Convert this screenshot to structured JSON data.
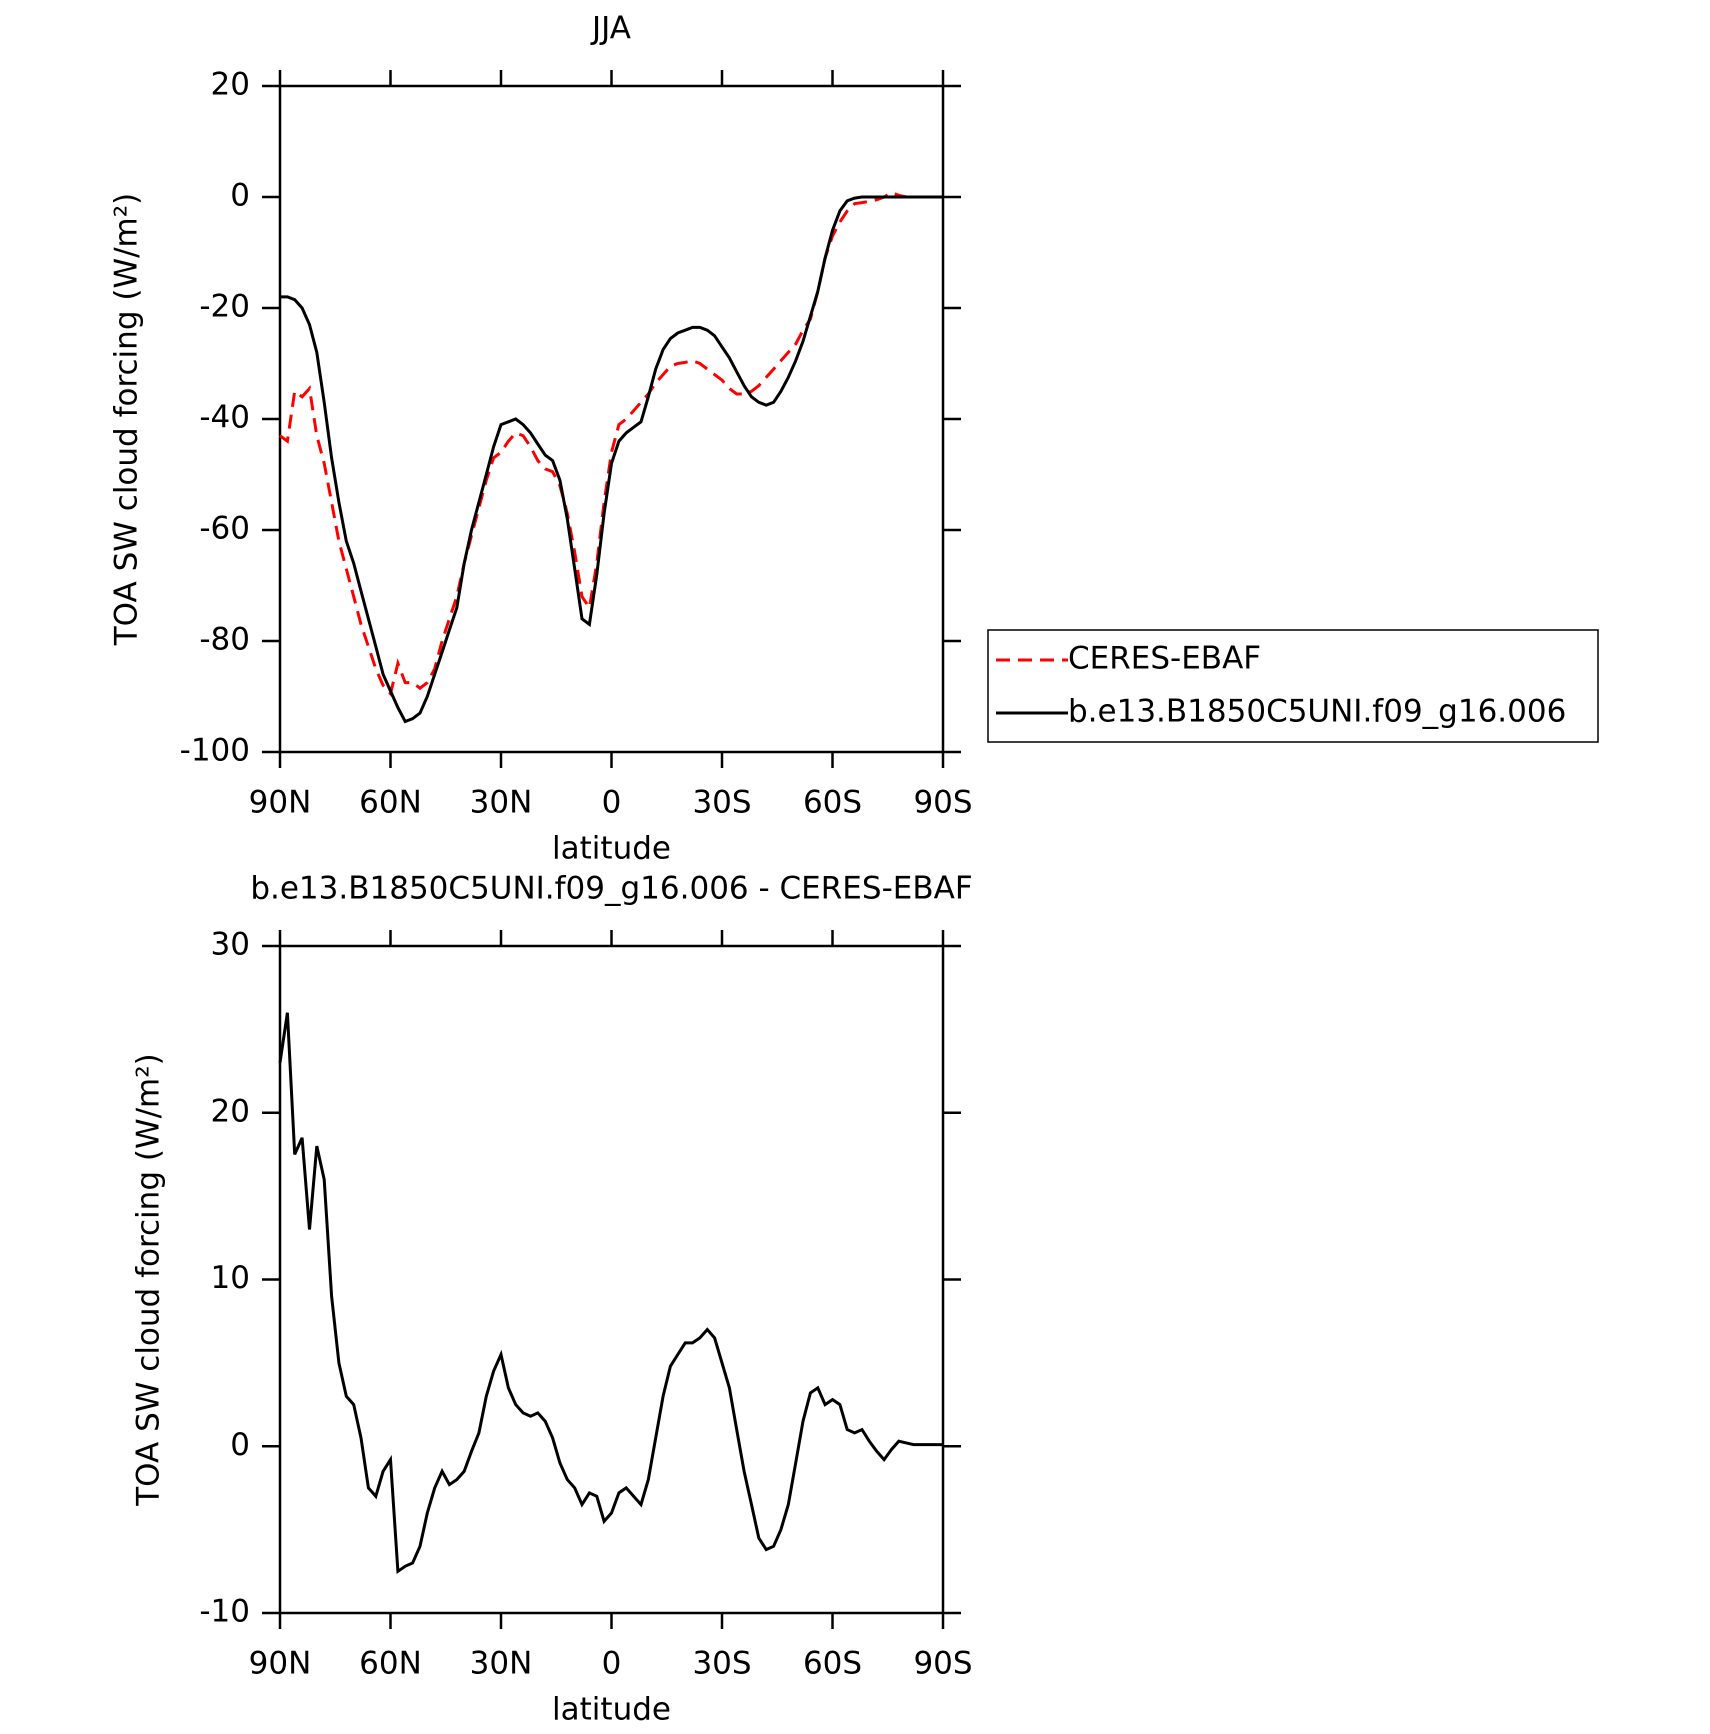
{
  "chart_data": [
    {
      "type": "line",
      "title": "JJA",
      "xlabel": "latitude",
      "ylabel": "TOA SW cloud forcing (W/m²)",
      "x": [
        90,
        88,
        86,
        84,
        82,
        80,
        78,
        76,
        74,
        72,
        70,
        68,
        66,
        64,
        62,
        60,
        58,
        56,
        54,
        52,
        50,
        48,
        46,
        44,
        42,
        40,
        38,
        36,
        34,
        32,
        30,
        28,
        26,
        24,
        22,
        20,
        18,
        16,
        14,
        12,
        10,
        8,
        6,
        4,
        2,
        0,
        -2,
        -4,
        -6,
        -8,
        -10,
        -12,
        -14,
        -16,
        -18,
        -20,
        -22,
        -24,
        -26,
        -28,
        -30,
        -32,
        -34,
        -36,
        -38,
        -40,
        -42,
        -44,
        -46,
        -48,
        -50,
        -52,
        -54,
        -56,
        -58,
        -60,
        -62,
        -64,
        -66,
        -68,
        -70,
        -72,
        -74,
        -76,
        -78,
        -80,
        -82,
        -84,
        -86,
        -88,
        -90
      ],
      "series": [
        {
          "name": "CERES-EBAF",
          "color": "#ff0000",
          "dashed": true,
          "values": [
            -43,
            -44,
            -35,
            -36,
            -34.5,
            -43,
            -48,
            -55,
            -62,
            -67,
            -72,
            -77,
            -81,
            -85,
            -88,
            -89.5,
            -84,
            -87.5,
            -87.5,
            -88.5,
            -87.5,
            -85,
            -80,
            -76,
            -72,
            -66,
            -61,
            -56,
            -51,
            -47,
            -46,
            -44,
            -42.5,
            -43,
            -45,
            -47.5,
            -49,
            -49.5,
            -52,
            -57,
            -64,
            -72,
            -74,
            -66,
            -55,
            -46,
            -41,
            -40,
            -38.5,
            -37,
            -35.5,
            -33.5,
            -32,
            -30.5,
            -30,
            -29.8,
            -29.5,
            -30,
            -31,
            -32,
            -33,
            -34.5,
            -35.5,
            -35.5,
            -35,
            -34,
            -32.5,
            -31,
            -29.5,
            -28,
            -26.5,
            -24,
            -22,
            -17,
            -11,
            -7,
            -4.5,
            -2.5,
            -1.2,
            -1,
            -0.8,
            -0.5,
            0,
            0.8,
            0.3,
            0,
            0,
            0,
            0,
            0,
            0
          ]
        },
        {
          "name": "b.e13.B1850C5UNI.f09_g16.006",
          "color": "#000000",
          "dashed": false,
          "values": [
            -18,
            -18,
            -18.5,
            -20,
            -23,
            -28,
            -37,
            -47,
            -55,
            -62,
            -66,
            -71,
            -76,
            -81,
            -86,
            -89,
            -92,
            -94.5,
            -94,
            -93,
            -90,
            -86,
            -82,
            -78,
            -74,
            -66,
            -60,
            -55,
            -50,
            -45,
            -41,
            -40.5,
            -40,
            -41,
            -42.5,
            -44.5,
            -46.5,
            -47.5,
            -51,
            -58,
            -67,
            -76,
            -77,
            -68,
            -57,
            -48,
            -44,
            -42.5,
            -41.5,
            -40.5,
            -36,
            -31,
            -27.5,
            -25.5,
            -24.5,
            -24,
            -23.5,
            -23.5,
            -24,
            -25,
            -27,
            -29,
            -31.5,
            -34,
            -36,
            -37,
            -37.5,
            -37,
            -35,
            -32.5,
            -29.5,
            -26,
            -21.5,
            -17,
            -11,
            -6,
            -2.5,
            -0.7,
            -0.2,
            0,
            0,
            0,
            0,
            0,
            0,
            0,
            0,
            0,
            0,
            0,
            0
          ]
        }
      ],
      "xlim": [
        90,
        -90
      ],
      "ylim": [
        -100,
        20
      ],
      "xticks": [
        {
          "value": 90,
          "label": "90N"
        },
        {
          "value": 60,
          "label": "60N"
        },
        {
          "value": 30,
          "label": "30N"
        },
        0,
        {
          "value": -30,
          "label": "30S"
        },
        {
          "value": -60,
          "label": "60S"
        },
        {
          "value": -90,
          "label": "90S"
        }
      ],
      "yticks": [
        -100,
        -80,
        -60,
        -40,
        -20,
        0,
        20
      ],
      "legend": "right"
    },
    {
      "type": "line",
      "title": "b.e13.B1850C5UNI.f09_g16.006 - CERES-EBAF",
      "xlabel": "latitude",
      "ylabel": "TOA SW cloud forcing (W/m²)",
      "x": [
        90,
        88,
        86,
        84,
        82,
        80,
        78,
        76,
        74,
        72,
        70,
        68,
        66,
        64,
        62,
        60,
        58,
        56,
        54,
        52,
        50,
        48,
        46,
        44,
        42,
        40,
        38,
        36,
        34,
        32,
        30,
        28,
        26,
        24,
        22,
        20,
        18,
        16,
        14,
        12,
        10,
        8,
        6,
        4,
        2,
        0,
        -2,
        -4,
        -6,
        -8,
        -10,
        -12,
        -14,
        -16,
        -18,
        -20,
        -22,
        -24,
        -26,
        -28,
        -30,
        -32,
        -34,
        -36,
        -38,
        -40,
        -42,
        -44,
        -46,
        -48,
        -50,
        -52,
        -54,
        -56,
        -58,
        -60,
        -62,
        -64,
        -66,
        -68,
        -70,
        -72,
        -74,
        -76,
        -78,
        -80,
        -82,
        -84,
        -86,
        -88,
        -90
      ],
      "color": "#000000",
      "values": [
        23,
        26,
        17.5,
        18.5,
        13,
        18,
        16,
        9,
        5,
        3,
        2.5,
        0.5,
        -2.5,
        -3,
        -1.5,
        -0.8,
        -7.5,
        -7.2,
        -7,
        -6,
        -4,
        -2.5,
        -1.5,
        -2.3,
        -2,
        -1.5,
        -0.3,
        0.8,
        3,
        4.5,
        5.5,
        3.5,
        2.5,
        2,
        1.8,
        2,
        1.5,
        0.5,
        -1,
        -2,
        -2.5,
        -3.5,
        -2.8,
        -3,
        -4.5,
        -4,
        -2.8,
        -2.5,
        -3,
        -3.5,
        -2,
        0.5,
        3,
        4.8,
        5.5,
        6.2,
        6.2,
        6.5,
        7,
        6.5,
        5,
        3.5,
        1,
        -1.5,
        -3.5,
        -5.5,
        -6.2,
        -6,
        -5,
        -3.5,
        -1,
        1.5,
        3.2,
        3.5,
        2.5,
        2.8,
        2.5,
        1,
        0.8,
        1,
        0.3,
        -0.3,
        -0.8,
        -0.2,
        0.3,
        0.2,
        0.1,
        0.1,
        0.1,
        0.1,
        0.1
      ],
      "xlim": [
        90,
        -90
      ],
      "ylim": [
        -10,
        30
      ],
      "xticks": [
        {
          "value": 90,
          "label": "90N"
        },
        {
          "value": 60,
          "label": "60N"
        },
        {
          "value": 30,
          "label": "30N"
        },
        0,
        {
          "value": -30,
          "label": "30S"
        },
        {
          "value": -60,
          "label": "60S"
        },
        {
          "value": -90,
          "label": "90S"
        }
      ],
      "yticks": [
        -10,
        0,
        10,
        20,
        30
      ]
    }
  ]
}
